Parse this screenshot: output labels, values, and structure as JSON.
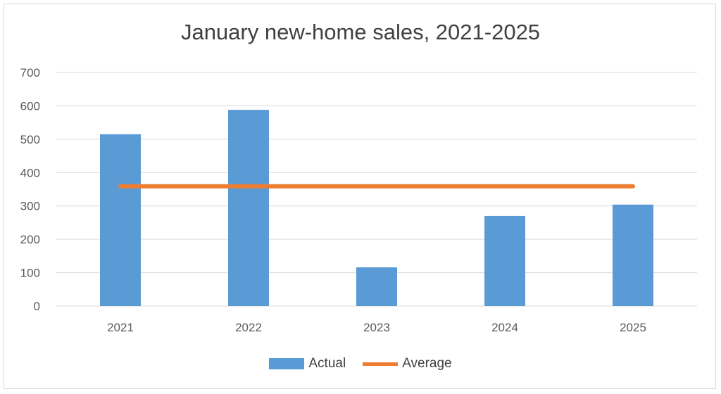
{
  "chart_data": {
    "type": "bar",
    "title": "January new-home sales, 2021-2025",
    "categories": [
      "2021",
      "2022",
      "2023",
      "2024",
      "2025"
    ],
    "series": [
      {
        "name": "Actual",
        "type": "bar",
        "color": "#5b9bd5",
        "values": [
          515,
          588,
          116,
          270,
          304
        ]
      },
      {
        "name": "Average",
        "type": "line",
        "color": "#ed7d31",
        "values": [
          359,
          359,
          359,
          359,
          359
        ]
      }
    ],
    "yticks": [
      "0",
      "100",
      "200",
      "300",
      "400",
      "500",
      "600",
      "700"
    ],
    "ylim": [
      0,
      700
    ],
    "xlabel": "",
    "ylabel": "",
    "grid": true,
    "legend": "bottom"
  }
}
